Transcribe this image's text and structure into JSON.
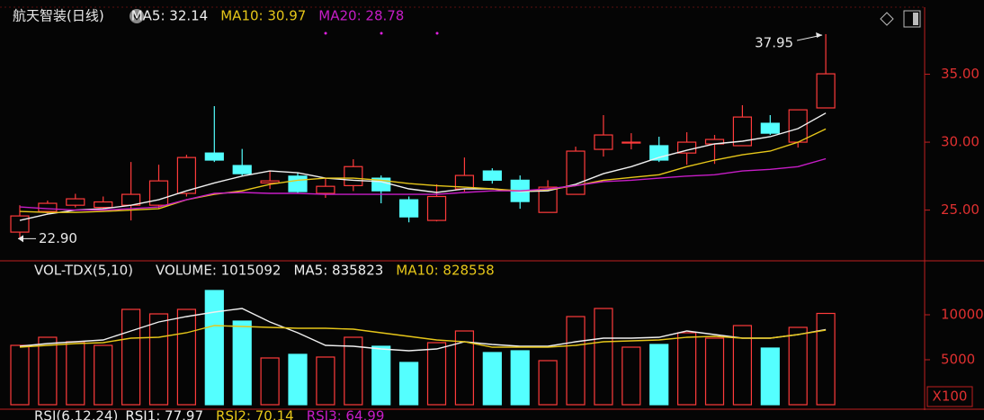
{
  "chart_data": [
    {
      "type": "candlestick",
      "title": "航天智装(日线)",
      "open": [
        23.38,
        24.9,
        25.36,
        25.2,
        25.36,
        25.36,
        26.23,
        29.2,
        28.28,
        27.0,
        27.5,
        26.23,
        26.8,
        27.35,
        25.76,
        24.24,
        26.56,
        27.88,
        27.2,
        24.83,
        26.16,
        29.47,
        30.0,
        29.74,
        29.2,
        29.87,
        29.74,
        31.39,
        30.0,
        32.52
      ],
      "high": [
        25.36,
        25.7,
        26.2,
        26.0,
        28.54,
        28.34,
        29.07,
        32.65,
        29.5,
        27.9,
        27.75,
        27.35,
        28.74,
        27.55,
        26.0,
        26.9,
        28.87,
        28.08,
        27.55,
        27.2,
        29.67,
        31.99,
        30.66,
        30.4,
        30.73,
        30.53,
        32.72,
        31.99,
        32.38,
        37.95
      ],
      "low": [
        22.9,
        24.7,
        25.2,
        25.1,
        24.24,
        25.1,
        26.0,
        28.54,
        27.5,
        26.56,
        26.23,
        25.9,
        26.4,
        25.5,
        24.1,
        24.17,
        26.36,
        26.95,
        25.1,
        24.83,
        26.16,
        28.94,
        29.47,
        28.54,
        28.34,
        28.4,
        29.74,
        30.53,
        29.6,
        32.52
      ],
      "close": [
        24.57,
        25.5,
        25.83,
        25.6,
        26.16,
        27.15,
        28.87,
        28.68,
        27.68,
        27.15,
        26.36,
        26.75,
        28.2,
        26.42,
        24.5,
        26.0,
        27.55,
        27.2,
        25.63,
        26.69,
        29.34,
        30.53,
        30.0,
        28.68,
        30.0,
        30.2,
        31.85,
        30.66,
        32.38,
        35.03
      ],
      "up_color": "#ff3b3b",
      "down_color": "#54ffff",
      "series": [
        {
          "name": "MA5: 32.14",
          "color": "#f0f0f0",
          "values": [
            24.24,
            24.7,
            25.0,
            25.1,
            25.36,
            25.76,
            26.42,
            27.0,
            27.5,
            27.88,
            27.75,
            27.35,
            27.2,
            27.1,
            26.56,
            26.3,
            26.56,
            26.56,
            26.36,
            26.42,
            26.9,
            27.68,
            28.2,
            28.87,
            29.4,
            29.87,
            30.07,
            30.4,
            31.0,
            32.14
          ]
        },
        {
          "name": "MA10: 30.97",
          "color": "#e6c619",
          "values": [
            24.9,
            24.83,
            24.83,
            24.9,
            25.0,
            25.1,
            25.76,
            26.16,
            26.42,
            26.9,
            27.2,
            27.35,
            27.35,
            27.2,
            26.95,
            26.8,
            26.69,
            26.56,
            26.42,
            26.5,
            26.8,
            27.2,
            27.4,
            27.6,
            28.2,
            28.68,
            29.07,
            29.34,
            30.0,
            30.97
          ]
        },
        {
          "name": "MA20: 28.78",
          "color": "#c61dc6",
          "values": [
            25.23,
            25.1,
            25.0,
            25.0,
            25.1,
            25.23,
            25.76,
            26.23,
            26.3,
            26.23,
            26.23,
            26.16,
            26.16,
            26.16,
            26.16,
            26.16,
            26.3,
            26.42,
            26.42,
            26.56,
            26.8,
            27.1,
            27.2,
            27.35,
            27.5,
            27.6,
            27.88,
            28.0,
            28.2,
            28.78
          ]
        }
      ],
      "high_label": "37.95",
      "low_label": "22.90",
      "ylim": [
        21.4,
        39.8
      ],
      "yticks": [
        {
          "value": 25,
          "label": "25.00"
        },
        {
          "value": 30,
          "label": "30.00"
        },
        {
          "value": 35,
          "label": "35.00"
        }
      ]
    },
    {
      "type": "bar",
      "title": "VOL-TDX(5,10)",
      "volume_label": "VOLUME: 1015092",
      "unit": "X100",
      "values": [
        6600,
        7500,
        7000,
        6600,
        10600,
        10100,
        10600,
        12700,
        9300,
        5200,
        5600,
        5300,
        7500,
        6500,
        4700,
        6900,
        8200,
        5800,
        6000,
        4900,
        9800,
        10700,
        6400,
        6700,
        8000,
        7400,
        8800,
        6300,
        8600,
        10151
      ],
      "colors": [
        "#ff3b3b",
        "#ff3b3b",
        "#ff3b3b",
        "#ff3b3b",
        "#ff3b3b",
        "#ff3b3b",
        "#ff3b3b",
        "#54ffff",
        "#54ffff",
        "#ff3b3b",
        "#54ffff",
        "#ff3b3b",
        "#ff3b3b",
        "#54ffff",
        "#54ffff",
        "#ff3b3b",
        "#ff3b3b",
        "#54ffff",
        "#54ffff",
        "#ff3b3b",
        "#ff3b3b",
        "#ff3b3b",
        "#ff3b3b",
        "#54ffff",
        "#ff3b3b",
        "#ff3b3b",
        "#ff3b3b",
        "#54ffff",
        "#ff3b3b",
        "#ff3b3b"
      ],
      "series": [
        {
          "name": "MA5: 835823",
          "color": "#f0f0f0",
          "values": [
            6500,
            6800,
            7000,
            7200,
            8200,
            9200,
            9800,
            10300,
            10700,
            9200,
            8000,
            6600,
            6500,
            6200,
            6000,
            6200,
            7000,
            6700,
            6500,
            6500,
            7000,
            7400,
            7400,
            7500,
            8200,
            7800,
            7400,
            7400,
            7800,
            8358
          ]
        },
        {
          "name": "MA10: 828558",
          "color": "#e6c619",
          "values": [
            6400,
            6600,
            6800,
            6900,
            7400,
            7500,
            8000,
            8800,
            8700,
            8600,
            8500,
            8500,
            8400,
            8000,
            7600,
            7200,
            7000,
            6400,
            6400,
            6400,
            6600,
            7000,
            7100,
            7200,
            7500,
            7600,
            7400,
            7400,
            7800,
            8286
          ]
        }
      ],
      "ylim": [
        0,
        16000
      ],
      "yticks": [
        5000,
        10000
      ]
    },
    {
      "type": "line",
      "title": "RSI(6,12,24)",
      "series": [
        {
          "name": "RSI1: 77.97",
          "color": "#f0f0f0"
        },
        {
          "name": "RSI2: 70.14",
          "color": "#e6c619"
        },
        {
          "name": "RSI3: 64.99",
          "color": "#c61dc6"
        }
      ]
    }
  ]
}
